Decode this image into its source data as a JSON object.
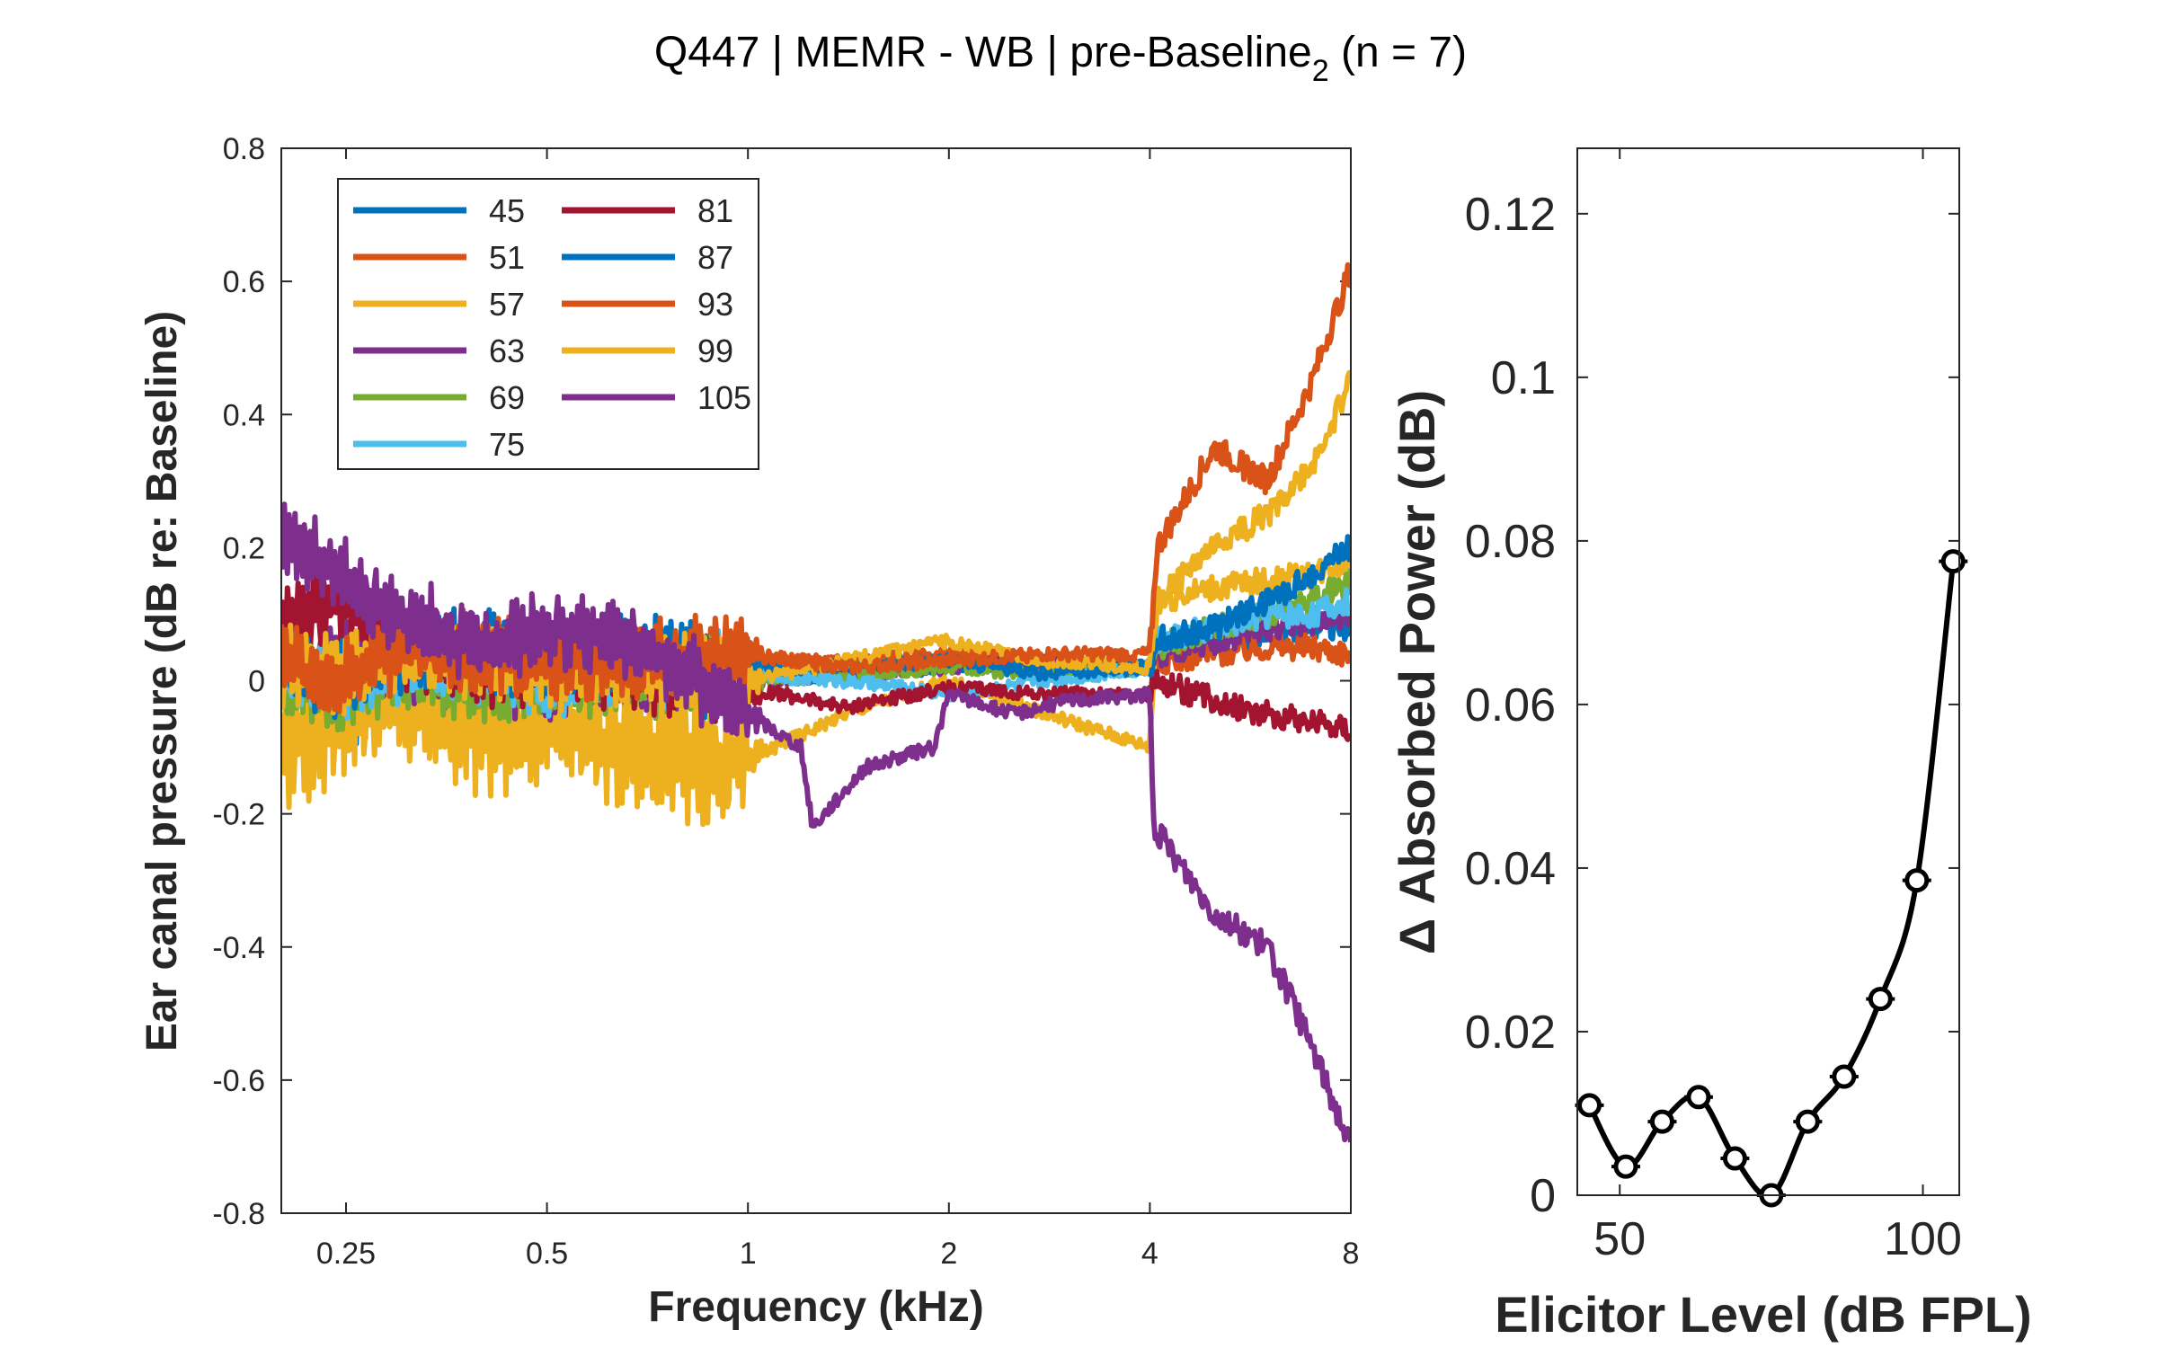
{
  "title": {
    "prefix": "Q447 | MEMR - WB | pre-Baseline",
    "subscript": "2",
    "suffix": " (n = 7)"
  },
  "colors": {
    "45": "#0072BD",
    "51": "#D95319",
    "57": "#EDB120",
    "63": "#7E2F8E",
    "69": "#77AC30",
    "75": "#4DBEEE",
    "81": "#A2142F",
    "87": "#0072BD",
    "93": "#D95319",
    "99": "#EDB120",
    "105": "#7E2F8E"
  },
  "chart_data": [
    {
      "type": "line",
      "xlabel": "Frequency (kHz)",
      "ylabel": "Ear canal pressure (dB re: Baseline)",
      "xscale": "log",
      "xlim": [
        0.2,
        8
      ],
      "ylim": [
        -0.8,
        0.8
      ],
      "xticks": [
        0.25,
        0.5,
        1,
        2,
        4,
        8
      ],
      "xtick_labels": [
        "0.25",
        "0.5",
        "1",
        "2",
        "4",
        "8"
      ],
      "yticks": [
        -0.8,
        -0.6,
        -0.4,
        -0.2,
        0,
        0.2,
        0.4,
        0.6,
        0.8
      ],
      "ytick_labels": [
        "-0.8",
        "-0.6",
        "-0.4",
        "-0.2",
        "0",
        "0.2",
        "0.4",
        "0.6",
        "0.8"
      ],
      "legend": {
        "placement": "top-left",
        "columns": 2
      },
      "series": [
        {
          "name": "45",
          "x": [
            0.2,
            0.25,
            0.3,
            0.4,
            0.5,
            0.7,
            1.0,
            1.4,
            2.0,
            2.8,
            4.0,
            4.1,
            5.0,
            6.0,
            7.0,
            8.0
          ],
          "values": [
            0.02,
            -0.05,
            0.02,
            -0.01,
            0.04,
            0.02,
            0.0,
            0.01,
            0.02,
            0.03,
            0.02,
            0.05,
            0.06,
            0.07,
            0.08,
            0.08
          ]
        },
        {
          "name": "51",
          "x": [
            0.2,
            0.25,
            0.3,
            0.4,
            0.5,
            0.7,
            1.0,
            1.4,
            2.0,
            2.8,
            4.0,
            4.1,
            5.0,
            6.0,
            7.0,
            8.0
          ],
          "values": [
            0.05,
            -0.05,
            0.02,
            -0.03,
            0.02,
            0.02,
            0.03,
            0.03,
            0.04,
            0.02,
            0.02,
            0.03,
            0.04,
            0.05,
            0.05,
            0.04
          ]
        },
        {
          "name": "57",
          "x": [
            0.2,
            0.25,
            0.3,
            0.4,
            0.5,
            0.7,
            1.0,
            1.4,
            2.0,
            2.8,
            4.0,
            4.1,
            5.0,
            6.0,
            7.0,
            8.0
          ],
          "values": [
            -0.1,
            -0.05,
            -0.02,
            -0.08,
            -0.07,
            -0.1,
            -0.12,
            -0.05,
            0.0,
            -0.05,
            -0.1,
            0.12,
            0.14,
            0.15,
            0.16,
            0.18
          ]
        },
        {
          "name": "63",
          "x": [
            0.2,
            0.25,
            0.3,
            0.4,
            0.5,
            0.7,
            1.0,
            1.4,
            2.0,
            2.8,
            4.0,
            4.1,
            5.0,
            6.0,
            7.0,
            8.0
          ],
          "values": [
            0.0,
            0.05,
            0.03,
            0.01,
            0.0,
            0.02,
            0.0,
            0.01,
            0.02,
            0.03,
            0.02,
            0.04,
            0.06,
            0.08,
            0.09,
            0.1
          ]
        },
        {
          "name": "69",
          "x": [
            0.2,
            0.25,
            0.3,
            0.4,
            0.5,
            0.7,
            1.0,
            1.4,
            2.0,
            2.8,
            4.0,
            4.1,
            5.0,
            6.0,
            7.0,
            8.0
          ],
          "values": [
            0.0,
            -0.02,
            0.02,
            -0.01,
            0.0,
            0.01,
            0.0,
            0.01,
            0.02,
            0.01,
            0.02,
            0.05,
            0.08,
            0.1,
            0.12,
            0.15
          ]
        },
        {
          "name": "75",
          "x": [
            0.2,
            0.25,
            0.3,
            0.4,
            0.5,
            0.7,
            1.0,
            1.4,
            2.0,
            2.8,
            4.0,
            4.1,
            5.0,
            6.0,
            7.0,
            8.0
          ],
          "values": [
            0.02,
            0.0,
            0.03,
            0.02,
            0.01,
            0.02,
            0.01,
            0.0,
            -0.02,
            0.0,
            0.02,
            0.06,
            0.08,
            0.1,
            0.1,
            0.12
          ]
        },
        {
          "name": "81",
          "x": [
            0.2,
            0.25,
            0.3,
            0.4,
            0.5,
            0.7,
            1.0,
            1.4,
            2.0,
            2.8,
            4.0,
            4.1,
            5.0,
            6.0,
            7.0,
            8.0
          ],
          "values": [
            0.08,
            0.12,
            0.05,
            0.02,
            0.03,
            0.01,
            -0.01,
            -0.04,
            -0.01,
            -0.02,
            -0.02,
            0.0,
            -0.03,
            -0.05,
            -0.06,
            -0.07
          ]
        },
        {
          "name": "87",
          "x": [
            0.2,
            0.25,
            0.3,
            0.4,
            0.5,
            0.7,
            1.0,
            1.4,
            2.0,
            2.8,
            4.0,
            4.1,
            5.0,
            6.0,
            7.0,
            8.0
          ],
          "values": [
            0.03,
            0.0,
            0.04,
            0.05,
            0.03,
            0.04,
            0.02,
            0.02,
            0.03,
            0.01,
            0.02,
            0.06,
            0.08,
            0.12,
            0.16,
            0.2
          ]
        },
        {
          "name": "93",
          "x": [
            0.2,
            0.25,
            0.3,
            0.4,
            0.5,
            0.7,
            1.0,
            1.4,
            2.0,
            2.8,
            4.0,
            4.1,
            5.0,
            6.0,
            7.0,
            8.0
          ],
          "values": [
            0.03,
            0.0,
            0.05,
            0.04,
            0.03,
            0.03,
            0.04,
            0.02,
            0.03,
            0.04,
            0.04,
            0.2,
            0.35,
            0.3,
            0.45,
            0.62
          ]
        },
        {
          "name": "99",
          "x": [
            0.2,
            0.25,
            0.3,
            0.4,
            0.5,
            0.7,
            1.0,
            1.4,
            2.0,
            2.8,
            4.0,
            4.1,
            5.0,
            6.0,
            7.0,
            8.0
          ],
          "values": [
            0.02,
            0.01,
            0.04,
            0.03,
            0.02,
            0.01,
            0.0,
            0.03,
            0.06,
            0.03,
            0.02,
            0.12,
            0.2,
            0.25,
            0.32,
            0.45
          ]
        },
        {
          "name": "105",
          "x": [
            0.2,
            0.25,
            0.3,
            0.4,
            0.5,
            0.7,
            1.0,
            1.2,
            1.25,
            1.5,
            1.9,
            2.0,
            2.5,
            3.0,
            4.0,
            4.05,
            5.0,
            6.0,
            7.0,
            8.0
          ],
          "values": [
            0.22,
            0.15,
            0.1,
            0.05,
            0.08,
            0.05,
            -0.05,
            -0.1,
            -0.22,
            -0.13,
            -0.1,
            -0.02,
            -0.05,
            -0.03,
            -0.02,
            -0.22,
            -0.35,
            -0.4,
            -0.55,
            -0.7
          ]
        }
      ]
    },
    {
      "type": "line",
      "xlabel": "Elicitor Level (dB FPL)",
      "ylabel": "Δ Absorbed Power (dB)",
      "xlim": [
        43,
        106
      ],
      "ylim": [
        0,
        0.128
      ],
      "xticks": [
        50,
        100
      ],
      "xtick_labels": [
        "50",
        "100"
      ],
      "yticks": [
        0,
        0.02,
        0.04,
        0.06,
        0.08,
        0.1,
        0.12
      ],
      "ytick_labels": [
        "0",
        "0.02",
        "0.04",
        "0.06",
        "0.08",
        "0.1",
        "0.12"
      ],
      "series": [
        {
          "x": [
            45,
            51,
            57,
            63,
            69,
            75,
            81,
            87,
            93,
            99,
            105
          ],
          "values": [
            0.011,
            0.0035,
            0.009,
            0.012,
            0.0045,
            0.0,
            0.009,
            0.0145,
            0.024,
            0.0385,
            0.0775
          ]
        }
      ]
    }
  ]
}
